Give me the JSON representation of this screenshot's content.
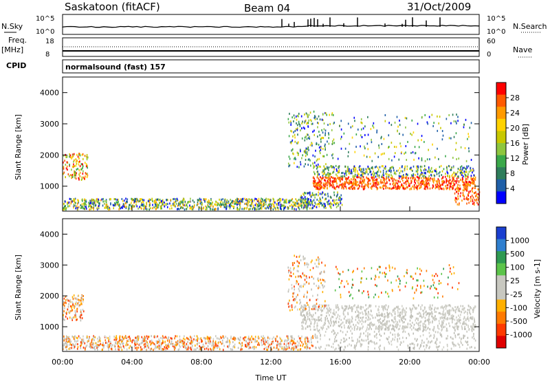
{
  "header": {
    "station": "Saskatoon (fitACF)",
    "beam": "Beam 04",
    "date": "31/Oct/2009"
  },
  "top_panel": {
    "left_label": "N.Sky",
    "right_label": "N.Search",
    "left_ticks": [
      "10^5",
      "10^0"
    ],
    "right_ticks": [
      "10^5",
      "10^0"
    ]
  },
  "freq_panel": {
    "left_label_1": "Freq.",
    "left_label_2": "[MHz]",
    "left_ticks": [
      "18",
      "8"
    ],
    "right_label": "Nave",
    "right_ticks": [
      "60",
      "0"
    ],
    "cpid_label": "CPID"
  },
  "mode_text": "normalsound (fast) 157",
  "chart_data": [
    {
      "type": "heatmap",
      "quantity": "Power",
      "ylabel": "Slant Range [km]",
      "colorbar_label": "Power [dB]",
      "ylim": [
        200,
        4500
      ],
      "y_ticks": [
        1000,
        2000,
        3000,
        4000
      ],
      "x_ticks": [
        "00:00",
        "04:00",
        "08:00",
        "12:00",
        "16:00",
        "20:00",
        "00:00"
      ],
      "colorbar_ticks": [
        "28",
        "24",
        "20",
        "16",
        "12",
        "8",
        "4"
      ],
      "colorbar_colors": [
        "#ff0000",
        "#ff5a00",
        "#ff9a00",
        "#ffd200",
        "#c8c800",
        "#8ec63f",
        "#3aa84a",
        "#2e7d5b",
        "#1f5fa8",
        "#0000ff"
      ]
    },
    {
      "type": "heatmap",
      "quantity": "Velocity",
      "ylabel": "Slant Range [km]",
      "xlabel": "Time UT",
      "colorbar_label": "Velocity [m s-1]",
      "ylim": [
        200,
        4500
      ],
      "y_ticks": [
        1000,
        2000,
        3000,
        4000
      ],
      "x_ticks": [
        "00:00",
        "04:00",
        "08:00",
        "12:00",
        "16:00",
        "20:00",
        "00:00"
      ],
      "colorbar_ticks": [
        "1000",
        "500",
        "100",
        "25",
        "-25",
        "-100",
        "-500",
        "-1000"
      ],
      "colorbar_colors": [
        "#1a3fd0",
        "#2f7fcf",
        "#2f9a52",
        "#5cc44a",
        "#c8c8c0",
        "#c8c8c0",
        "#ffb000",
        "#ff7a00",
        "#ff3a00",
        "#e00000"
      ]
    }
  ]
}
